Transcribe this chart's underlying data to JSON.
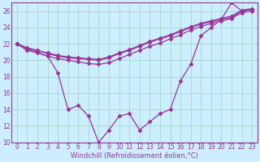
{
  "xlabel": "Windchill (Refroidissement éolien,°C)",
  "ylabel": "",
  "bg_color": "#cceeff",
  "grid_color": "#aaddcc",
  "line_color": "#993399",
  "x_hours": [
    0,
    1,
    2,
    3,
    4,
    5,
    6,
    7,
    8,
    9,
    10,
    11,
    12,
    13,
    14,
    15,
    16,
    17,
    18,
    19,
    20,
    21,
    22,
    23
  ],
  "lines": [
    [
      22,
      21.5,
      21.2,
      20.8,
      20.5,
      20.3,
      20.2,
      20.1,
      20.0,
      20.3,
      20.8,
      21.2,
      21.7,
      22.2,
      22.6,
      23.0,
      23.5,
      24.0,
      24.4,
      24.7,
      25.0,
      25.2,
      26.0,
      26.2
    ],
    [
      22,
      21.5,
      21.2,
      20.9,
      20.6,
      20.4,
      20.3,
      20.2,
      20.1,
      20.4,
      20.9,
      21.3,
      21.8,
      22.3,
      22.7,
      23.1,
      23.6,
      24.1,
      24.5,
      24.8,
      25.1,
      25.4,
      26.1,
      26.3
    ],
    [
      22,
      21.4,
      21.0,
      20.5,
      20.2,
      20.0,
      19.8,
      19.6,
      19.5,
      19.7,
      20.2,
      20.7,
      21.2,
      21.7,
      22.1,
      22.6,
      23.1,
      23.7,
      24.1,
      24.5,
      24.8,
      25.1,
      25.8,
      26.0
    ],
    [
      22,
      21.2,
      20.9,
      20.5,
      18.5,
      14.0,
      14.5,
      13.2,
      10.0,
      11.5,
      13.2,
      13.5,
      11.5,
      12.5,
      13.5,
      14.0,
      17.5,
      19.5,
      23.0,
      24.0,
      25.0,
      27.0,
      26.0,
      26.2
    ]
  ],
  "ylim": [
    10,
    27
  ],
  "yticks": [
    10,
    12,
    14,
    16,
    18,
    20,
    22,
    24,
    26
  ],
  "xtick_labels": [
    "0",
    "1",
    "2",
    "3",
    "4",
    "5",
    "6",
    "7",
    "8",
    "9",
    "10",
    "11",
    "12",
    "13",
    "14",
    "15",
    "16",
    "17",
    "18",
    "19",
    "20",
    "21",
    "22",
    "23"
  ],
  "marker": "D",
  "marker_size": 2.5,
  "line_width": 0.9,
  "tick_fontsize": 5.5,
  "xlabel_fontsize": 6.0
}
